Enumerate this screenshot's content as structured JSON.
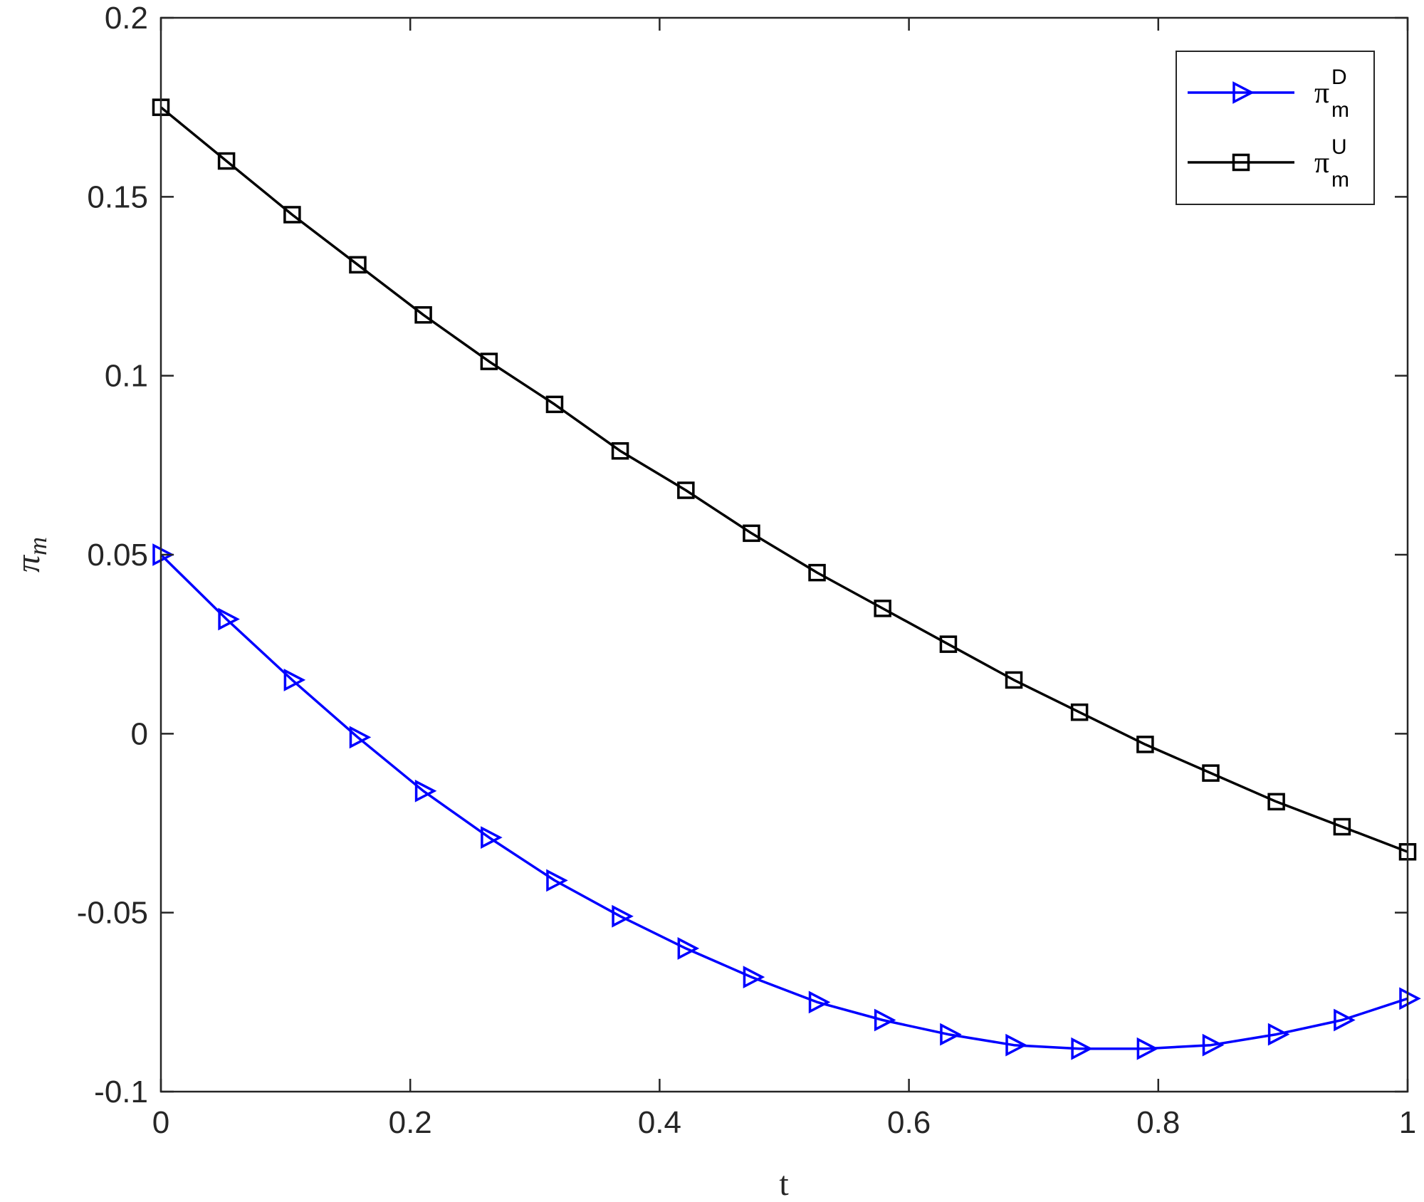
{
  "chart_data": {
    "type": "line",
    "title": "",
    "xlabel": "t",
    "ylabel_symbol": "π",
    "ylabel_subscript": "m",
    "xlim": [
      0,
      1
    ],
    "ylim": [
      -0.1,
      0.2
    ],
    "xticks": [
      0,
      0.2,
      0.4,
      0.6,
      0.8,
      1
    ],
    "xtick_labels": [
      "0",
      "0.2",
      "0.4",
      "0.6",
      "0.8",
      "1"
    ],
    "yticks": [
      -0.1,
      -0.05,
      0,
      0.05,
      0.1,
      0.15,
      0.2
    ],
    "ytick_labels": [
      "-0.1",
      "-0.05",
      "0",
      "0.05",
      "0.1",
      "0.15",
      "0.2"
    ],
    "grid": false,
    "legend_position": "top-right",
    "x": [
      0,
      0.0526,
      0.1053,
      0.1579,
      0.2105,
      0.2632,
      0.3158,
      0.3684,
      0.4211,
      0.4737,
      0.5263,
      0.5789,
      0.6316,
      0.6842,
      0.7368,
      0.7895,
      0.8421,
      0.8947,
      0.9474,
      1
    ],
    "series": [
      {
        "label_symbol": "π",
        "label_sub": "m",
        "label_sup": "D",
        "color": "#0000ff",
        "marker": "triangle-right",
        "values": [
          0.05,
          0.032,
          0.015,
          -0.001,
          -0.016,
          -0.029,
          -0.041,
          -0.051,
          -0.06,
          -0.068,
          -0.075,
          -0.08,
          -0.084,
          -0.087,
          -0.088,
          -0.088,
          -0.087,
          -0.084,
          -0.08,
          -0.074
        ]
      },
      {
        "label_symbol": "π",
        "label_sub": "m",
        "label_sup": "U",
        "color": "#000000",
        "marker": "square",
        "values": [
          0.175,
          0.16,
          0.145,
          0.131,
          0.117,
          0.104,
          0.092,
          0.079,
          0.068,
          0.056,
          0.045,
          0.035,
          0.025,
          0.015,
          0.006,
          -0.003,
          -0.011,
          -0.019,
          -0.026,
          -0.033
        ]
      }
    ]
  }
}
